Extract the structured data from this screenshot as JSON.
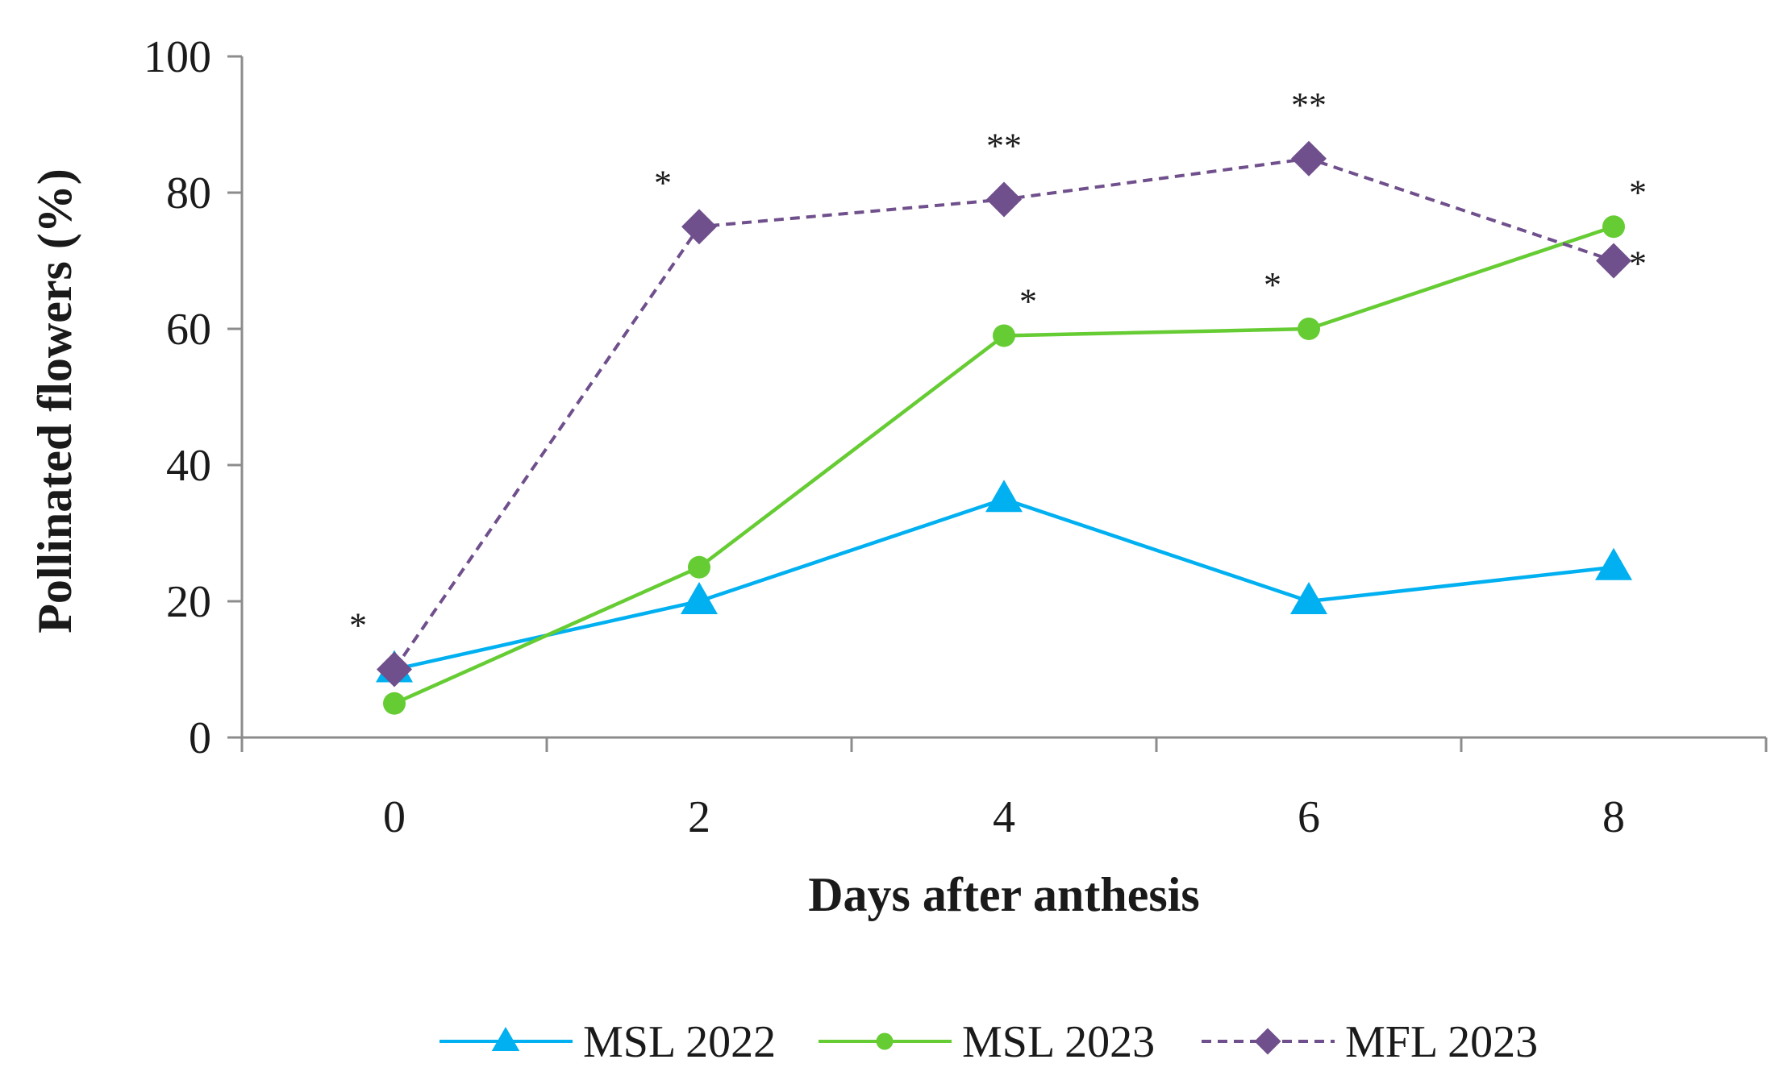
{
  "chart_data": {
    "type": "line",
    "title": "",
    "xlabel": "Days after anthesis",
    "ylabel": "Pollinated flowers (%)",
    "x": [
      0,
      2,
      4,
      6,
      8
    ],
    "x_tick_labels": [
      "0",
      "2",
      "4",
      "6",
      "8"
    ],
    "ylim": [
      0,
      100
    ],
    "y_ticks": [
      0,
      20,
      40,
      60,
      80,
      100
    ],
    "y_tick_labels": [
      "0",
      "20",
      "40",
      "60",
      "80",
      "100"
    ],
    "grid": false,
    "legend_position": "bottom",
    "series": [
      {
        "name": "MSL 2022",
        "values": [
          10,
          20,
          35,
          20,
          25
        ],
        "color": "#00b0f0",
        "marker": "triangle",
        "dash": "solid"
      },
      {
        "name": "MSL 2023",
        "values": [
          5,
          25,
          59,
          60,
          75
        ],
        "color": "#66cc33",
        "marker": "circle",
        "dash": "solid"
      },
      {
        "name": "MFL 2023",
        "values": [
          10,
          75,
          79,
          85,
          70
        ],
        "color": "#70508c",
        "marker": "diamond",
        "dash": "dashed"
      }
    ],
    "annotations": [
      {
        "text": "*",
        "x": 0,
        "series": "MFL 2023",
        "side": "above-left"
      },
      {
        "text": "*",
        "x": 2,
        "series": "MFL 2023",
        "side": "above-left"
      },
      {
        "text": "**",
        "x": 4,
        "series": "MFL 2023",
        "side": "above"
      },
      {
        "text": "**",
        "x": 6,
        "series": "MFL 2023",
        "side": "above"
      },
      {
        "text": "*",
        "x": 8,
        "series": "MSL 2023",
        "side": "above-right"
      },
      {
        "text": "*",
        "x": 8,
        "series": "MFL 2023",
        "side": "right"
      },
      {
        "text": "*",
        "x": 4,
        "series": "MSL 2023",
        "side": "above-right"
      },
      {
        "text": "*",
        "x": 6,
        "series": "MSL 2023",
        "side": "above-left"
      }
    ]
  }
}
